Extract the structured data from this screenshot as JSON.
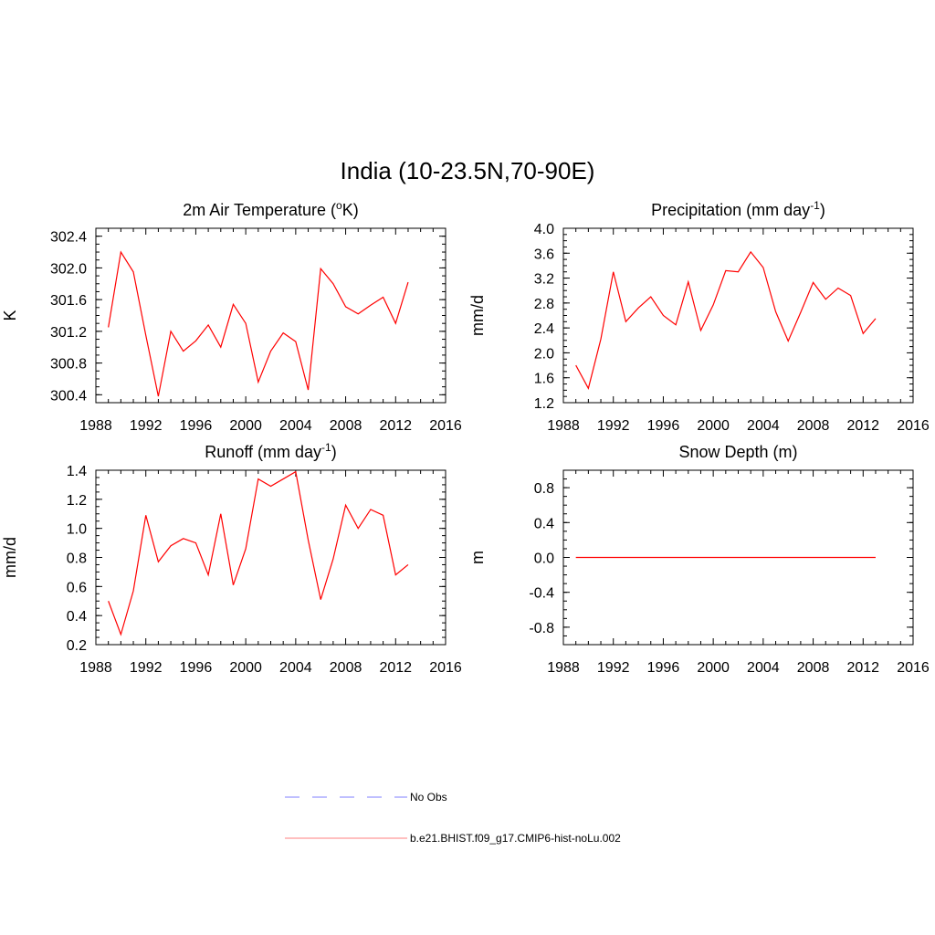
{
  "main_title": "India (10-23.5N,70-90E)",
  "colors": {
    "model": "#ff0000",
    "obs": "#aaaaff",
    "legend_model": "#ffaaaa",
    "axis": "#000000"
  },
  "legend": {
    "obs_label": "No Obs",
    "model_label": "b.e21.BHIST.f09_g17.CMIP6-hist-noLu.002"
  },
  "chart_data": [
    {
      "id": "temp",
      "type": "line",
      "title": "2m Air Temperature (°K)",
      "title_main": "2m Air Temperature (",
      "title_sup": "o",
      "title_tail": "K)",
      "ylabel": "K",
      "xlim": [
        1988,
        2016
      ],
      "ylim": [
        300.3,
        302.5
      ],
      "x_ticks": [
        "1988",
        "1992",
        "1996",
        "2000",
        "2004",
        "2008",
        "2012",
        "2016"
      ],
      "y_ticks": [
        "300.4",
        "300.8",
        "301.2",
        "301.6",
        "302.0",
        "302.4"
      ],
      "x": [
        1989,
        1990,
        1991,
        1992,
        1993,
        1994,
        1995,
        1996,
        1997,
        1998,
        1999,
        2000,
        2001,
        2002,
        2003,
        2004,
        2005,
        2006,
        2007,
        2008,
        2009,
        2010,
        2011,
        2012,
        2013
      ],
      "series": [
        {
          "values": [
            301.25,
            302.2,
            301.95,
            301.15,
            300.38,
            301.2,
            300.95,
            301.08,
            301.28,
            301.0,
            301.54,
            301.3,
            300.56,
            300.95,
            301.18,
            301.07,
            300.46,
            301.99,
            301.8,
            301.51,
            301.42,
            301.53,
            301.63,
            301.3,
            301.82
          ]
        }
      ]
    },
    {
      "id": "precip",
      "type": "line",
      "title": "Precipitation (mm day-1)",
      "title_main": "Precipitation (mm day",
      "title_sup": "-1",
      "title_tail": ")",
      "ylabel": "mm/d",
      "xlim": [
        1988,
        2016
      ],
      "ylim": [
        1.2,
        4.0
      ],
      "x_ticks": [
        "1988",
        "1992",
        "1996",
        "2000",
        "2004",
        "2008",
        "2012",
        "2016"
      ],
      "y_ticks": [
        "1.2",
        "1.6",
        "2.0",
        "2.4",
        "2.8",
        "3.2",
        "3.6",
        "4.0"
      ],
      "x": [
        1989,
        1990,
        1991,
        1992,
        1993,
        1994,
        1995,
        1996,
        1997,
        1998,
        1999,
        2000,
        2001,
        2002,
        2003,
        2004,
        2005,
        2006,
        2007,
        2008,
        2009,
        2010,
        2011,
        2012,
        2013
      ],
      "series": [
        {
          "values": [
            1.8,
            1.43,
            2.22,
            3.3,
            2.5,
            2.72,
            2.9,
            2.6,
            2.45,
            3.14,
            2.36,
            2.77,
            3.32,
            3.3,
            3.62,
            3.37,
            2.66,
            2.19,
            2.65,
            3.13,
            2.86,
            3.04,
            2.92,
            2.31,
            2.55
          ]
        }
      ]
    },
    {
      "id": "runoff",
      "type": "line",
      "title": "Runoff (mm day-1)",
      "title_main": "Runoff (mm day",
      "title_sup": "-1",
      "title_tail": ")",
      "ylabel": "mm/d",
      "xlim": [
        1988,
        2016
      ],
      "ylim": [
        0.2,
        1.4
      ],
      "x_ticks": [
        "1988",
        "1992",
        "1996",
        "2000",
        "2004",
        "2008",
        "2012",
        "2016"
      ],
      "y_ticks": [
        "0.2",
        "0.4",
        "0.6",
        "0.8",
        "1.0",
        "1.2",
        "1.4"
      ],
      "x": [
        1989,
        1990,
        1991,
        1992,
        1993,
        1994,
        1995,
        1996,
        1997,
        1998,
        1999,
        2000,
        2001,
        2002,
        2003,
        2004,
        2005,
        2006,
        2007,
        2008,
        2009,
        2010,
        2011,
        2012,
        2013
      ],
      "series": [
        {
          "values": [
            0.5,
            0.27,
            0.57,
            1.09,
            0.77,
            0.88,
            0.93,
            0.9,
            0.68,
            1.1,
            0.61,
            0.86,
            1.34,
            1.29,
            1.34,
            1.39,
            0.92,
            0.51,
            0.79,
            1.16,
            1.0,
            1.13,
            1.09,
            0.68,
            0.75
          ]
        }
      ]
    },
    {
      "id": "snow",
      "type": "line",
      "title": "Snow Depth (m)",
      "title_main": "Snow Depth (m)",
      "title_sup": "",
      "title_tail": "",
      "ylabel": "m",
      "xlim": [
        1988,
        2016
      ],
      "ylim": [
        -1.0,
        1.0
      ],
      "x_ticks": [
        "1988",
        "1992",
        "1996",
        "2000",
        "2004",
        "2008",
        "2012",
        "2016"
      ],
      "y_ticks": [
        "-0.8",
        "-0.4",
        "0.0",
        "0.4",
        "0.8"
      ],
      "x": [
        1989,
        1990,
        1991,
        1992,
        1993,
        1994,
        1995,
        1996,
        1997,
        1998,
        1999,
        2000,
        2001,
        2002,
        2003,
        2004,
        2005,
        2006,
        2007,
        2008,
        2009,
        2010,
        2011,
        2012,
        2013
      ],
      "series": [
        {
          "values": [
            0,
            0,
            0,
            0,
            0,
            0,
            0,
            0,
            0,
            0,
            0,
            0,
            0,
            0,
            0,
            0,
            0,
            0,
            0,
            0,
            0,
            0,
            0,
            0,
            0
          ]
        }
      ]
    }
  ]
}
